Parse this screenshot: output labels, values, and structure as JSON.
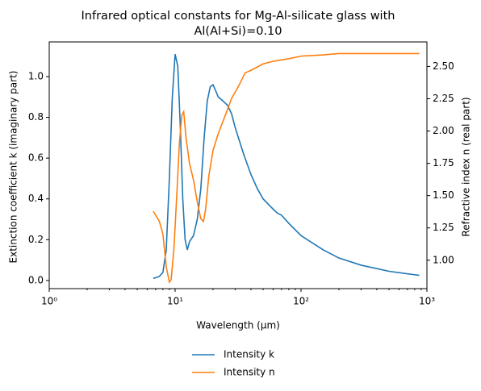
{
  "chart_data": {
    "type": "line",
    "title": [
      "Infrared optical constants for Mg-Al-silicate glass with",
      "Al(Al+Si)=0.10"
    ],
    "xlabel": "Wavelength (μm)",
    "ylabel": "Extinction coefficient k (imaginary part)",
    "y2label": "Refractive index n (real part)",
    "xscale": "log",
    "xlim": [
      1,
      1000
    ],
    "xticks": [
      {
        "value": 1,
        "label": "10⁰"
      },
      {
        "value": 10,
        "label": "10¹"
      },
      {
        "value": 100,
        "label": "10²"
      },
      {
        "value": 1000,
        "label": "10³"
      }
    ],
    "ylim": [
      -0.04,
      1.17
    ],
    "yticks": [
      {
        "value": 0,
        "label": "0.0"
      },
      0.2,
      0.4,
      0.6,
      0.8,
      {
        "value": 1,
        "label": "1.0"
      }
    ],
    "y2lim": [
      0.78,
      2.69
    ],
    "y2ticks": [
      {
        "value": 1,
        "label": "1.00"
      },
      1.25,
      {
        "value": 1.5,
        "label": "1.50"
      },
      1.75,
      {
        "value": 2,
        "label": "2.00"
      },
      2.25,
      {
        "value": 2.5,
        "label": "2.50"
      }
    ],
    "legend": "lower center outside",
    "series": [
      {
        "name": "Intensity k",
        "color": "#1f77b4",
        "x": [
          6.7,
          7.5,
          8,
          8.5,
          9,
          9.5,
          10,
          10.5,
          11,
          11.5,
          12,
          12.5,
          13,
          14,
          15,
          16,
          17,
          18,
          19,
          20,
          21,
          22,
          24,
          26,
          28,
          30,
          35,
          40,
          45,
          50,
          60,
          65,
          70,
          80,
          100,
          150,
          200,
          300,
          500,
          870
        ],
        "values": [
          0.01,
          0.02,
          0.04,
          0.15,
          0.5,
          0.9,
          1.11,
          1.05,
          0.75,
          0.4,
          0.2,
          0.15,
          0.19,
          0.22,
          0.3,
          0.45,
          0.7,
          0.88,
          0.95,
          0.96,
          0.93,
          0.9,
          0.88,
          0.86,
          0.82,
          0.75,
          0.62,
          0.52,
          0.45,
          0.4,
          0.35,
          0.33,
          0.32,
          0.28,
          0.22,
          0.15,
          0.11,
          0.075,
          0.045,
          0.025
        ]
      },
      {
        "name": "Intensity n",
        "color": "#ff7f0e",
        "axis": "y2",
        "x": [
          6.7,
          7.5,
          8,
          8.5,
          9,
          9.3,
          9.8,
          10.3,
          10.8,
          11.3,
          11.7,
          12.2,
          13,
          14,
          15,
          16,
          16.8,
          17.5,
          18.5,
          20,
          22,
          25,
          28,
          32,
          36,
          40,
          50,
          60,
          80,
          100,
          150,
          200,
          300,
          500,
          870
        ],
        "values": [
          1.38,
          1.3,
          1.2,
          0.95,
          0.83,
          0.85,
          1.1,
          1.5,
          1.9,
          2.12,
          2.15,
          1.95,
          1.75,
          1.62,
          1.45,
          1.32,
          1.3,
          1.4,
          1.65,
          1.85,
          1.98,
          2.12,
          2.25,
          2.35,
          2.45,
          2.47,
          2.52,
          2.54,
          2.56,
          2.58,
          2.59,
          2.6,
          2.6,
          2.6,
          2.6
        ]
      }
    ]
  }
}
